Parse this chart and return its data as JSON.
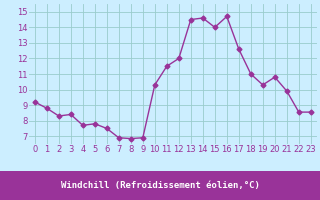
{
  "x": [
    0,
    1,
    2,
    3,
    4,
    5,
    6,
    7,
    8,
    9,
    10,
    11,
    12,
    13,
    14,
    15,
    16,
    17,
    18,
    19,
    20,
    21,
    22,
    23
  ],
  "y": [
    9.2,
    8.8,
    8.3,
    8.4,
    7.7,
    7.8,
    7.5,
    6.9,
    6.85,
    6.9,
    10.3,
    11.5,
    12.0,
    14.5,
    14.6,
    14.0,
    14.7,
    12.6,
    11.0,
    10.3,
    10.8,
    9.9,
    8.55,
    8.55
  ],
  "line_color": "#993399",
  "marker": "D",
  "markersize": 2.5,
  "linewidth": 1.0,
  "xlabel": "Windchill (Refroidissement éolien,°C)",
  "xlabel_fontsize": 6.5,
  "xlabel_bg_color": "#993399",
  "xlabel_fg_color": "#ffffff",
  "bg_color": "#cceeff",
  "grid_color": "#99cccc",
  "tick_fontsize": 6,
  "ylim": [
    6.5,
    15.5
  ],
  "yticks": [
    7,
    8,
    9,
    10,
    11,
    12,
    13,
    14,
    15
  ],
  "xticks": [
    0,
    1,
    2,
    3,
    4,
    5,
    6,
    7,
    8,
    9,
    10,
    11,
    12,
    13,
    14,
    15,
    16,
    17,
    18,
    19,
    20,
    21,
    22,
    23
  ],
  "xtick_labels": [
    "0",
    "1",
    "2",
    "3",
    "4",
    "5",
    "6",
    "7",
    "8",
    "9",
    "10",
    "11",
    "12",
    "13",
    "14",
    "15",
    "16",
    "17",
    "18",
    "19",
    "20",
    "21",
    "22",
    "23"
  ]
}
